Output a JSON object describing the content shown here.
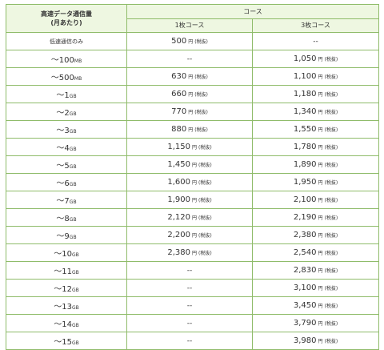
{
  "table": {
    "header_left_line1": "高速データ通信量",
    "header_left_line2": "(月あたり)",
    "header_course": "コース",
    "col1_label": "1枚コース",
    "col2_label": "3枚コース",
    "yen_label": "円",
    "tax_label": "(税抜)",
    "rows": [
      {
        "tier": "低速通信のみ",
        "unit": "",
        "c1": "500",
        "c2": "--"
      },
      {
        "tier": "～100",
        "unit": "MB",
        "c1": "--",
        "c2": "1,050"
      },
      {
        "tier": "～500",
        "unit": "MB",
        "c1": "630",
        "c2": "1,100"
      },
      {
        "tier": "～1",
        "unit": "GB",
        "c1": "660",
        "c2": "1,180"
      },
      {
        "tier": "～2",
        "unit": "GB",
        "c1": "770",
        "c2": "1,340"
      },
      {
        "tier": "～3",
        "unit": "GB",
        "c1": "880",
        "c2": "1,550"
      },
      {
        "tier": "～4",
        "unit": "GB",
        "c1": "1,150",
        "c2": "1,780"
      },
      {
        "tier": "～5",
        "unit": "GB",
        "c1": "1,450",
        "c2": "1,890"
      },
      {
        "tier": "～6",
        "unit": "GB",
        "c1": "1,600",
        "c2": "1,950"
      },
      {
        "tier": "～7",
        "unit": "GB",
        "c1": "1,900",
        "c2": "2,100"
      },
      {
        "tier": "～8",
        "unit": "GB",
        "c1": "2,120",
        "c2": "2,190"
      },
      {
        "tier": "～9",
        "unit": "GB",
        "c1": "2,200",
        "c2": "2,380"
      },
      {
        "tier": "～10",
        "unit": "GB",
        "c1": "2,380",
        "c2": "2,540"
      },
      {
        "tier": "～11",
        "unit": "GB",
        "c1": "--",
        "c2": "2,830"
      },
      {
        "tier": "～12",
        "unit": "GB",
        "c1": "--",
        "c2": "3,100"
      },
      {
        "tier": "～13",
        "unit": "GB",
        "c1": "--",
        "c2": "3,450"
      },
      {
        "tier": "～14",
        "unit": "GB",
        "c1": "--",
        "c2": "3,790"
      },
      {
        "tier": "～15",
        "unit": "GB",
        "c1": "--",
        "c2": "3,980"
      }
    ]
  },
  "colors": {
    "border": "#8fbc6a",
    "header_bg": "#eef7e1",
    "text": "#333333"
  }
}
